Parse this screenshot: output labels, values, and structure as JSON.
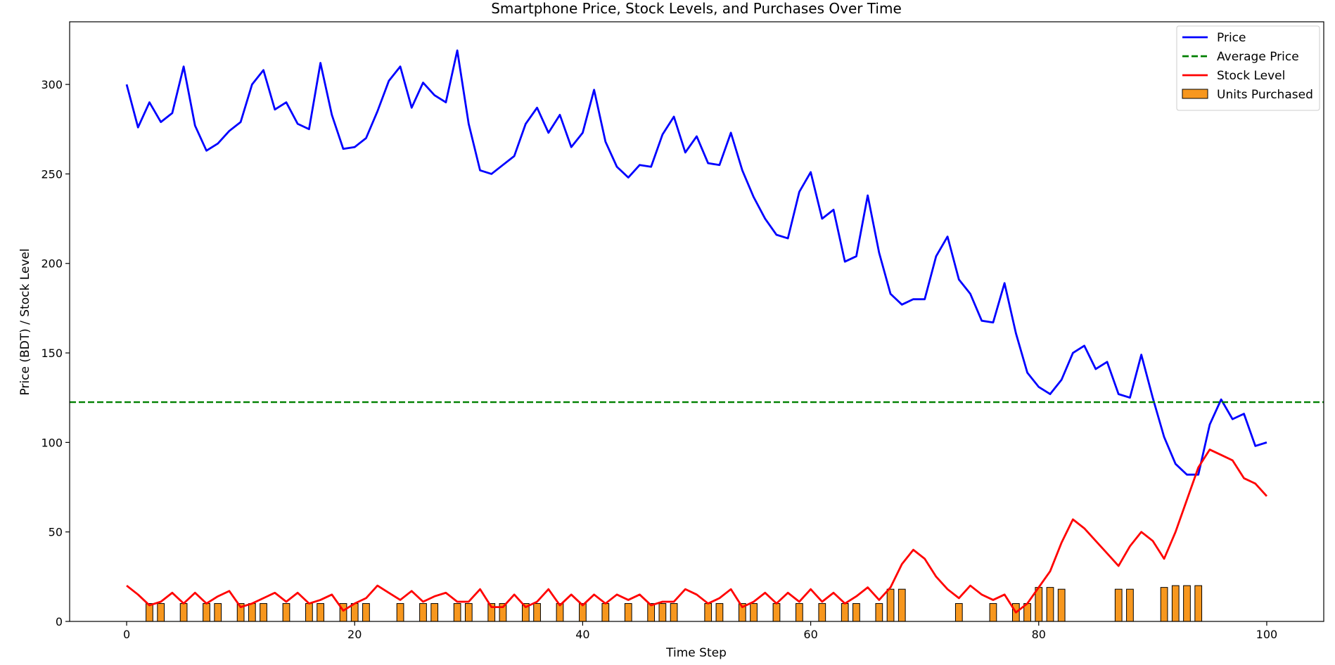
{
  "chart_data": {
    "type": "line",
    "title": "Smartphone Price, Stock Levels, and Purchases Over Time",
    "xlabel": "Time Step",
    "ylabel": "Price (BDT) / Stock Level",
    "xlim": [
      -5,
      105
    ],
    "ylim": [
      0,
      335
    ],
    "xticks": [
      0,
      20,
      40,
      60,
      80,
      100
    ],
    "yticks": [
      0,
      50,
      100,
      150,
      200,
      250,
      300
    ],
    "grid": false,
    "legend_position": "top-right",
    "x": [
      0,
      1,
      2,
      3,
      4,
      5,
      6,
      7,
      8,
      9,
      10,
      11,
      12,
      13,
      14,
      15,
      16,
      17,
      18,
      19,
      20,
      21,
      22,
      23,
      24,
      25,
      26,
      27,
      28,
      29,
      30,
      31,
      32,
      33,
      34,
      35,
      36,
      37,
      38,
      39,
      40,
      41,
      42,
      43,
      44,
      45,
      46,
      47,
      48,
      49,
      50,
      51,
      52,
      53,
      54,
      55,
      56,
      57,
      58,
      59,
      60,
      61,
      62,
      63,
      64,
      65,
      66,
      67,
      68,
      69,
      70,
      71,
      72,
      73,
      74,
      75,
      76,
      77,
      78,
      79,
      80,
      81,
      82,
      83,
      84,
      85,
      86,
      87,
      88,
      89,
      90,
      91,
      92,
      93,
      94,
      95,
      96,
      97,
      98,
      99,
      100
    ],
    "series": [
      {
        "name": "Price",
        "kind": "line",
        "color": "#0000ff",
        "style": "solid",
        "values": [
          300,
          276,
          290,
          279,
          284,
          310,
          277,
          263,
          267,
          274,
          279,
          300,
          308,
          286,
          290,
          278,
          275,
          312,
          283,
          264,
          265,
          270,
          285,
          302,
          310,
          287,
          301,
          294,
          290,
          319,
          278,
          252,
          250,
          255,
          260,
          278,
          287,
          273,
          283,
          265,
          273,
          297,
          268,
          254,
          248,
          255,
          254,
          272,
          282,
          262,
          271,
          256,
          255,
          273,
          252,
          237,
          225,
          216,
          214,
          240,
          251,
          225,
          230,
          201,
          204,
          238,
          206,
          183,
          177,
          180,
          180,
          204,
          215,
          191,
          183,
          168,
          167,
          189,
          161,
          139,
          131,
          127,
          135,
          150,
          154,
          141,
          145,
          127,
          125,
          149,
          125,
          103,
          88,
          82,
          82,
          110,
          124,
          113,
          116,
          98,
          100
        ]
      },
      {
        "name": "Average Price",
        "kind": "hline",
        "color": "#008000",
        "style": "dashed",
        "value": 122.5
      },
      {
        "name": "Stock Level",
        "kind": "line",
        "color": "#ff0000",
        "style": "solid",
        "values": [
          20,
          15,
          9,
          11,
          16,
          10,
          16,
          10,
          14,
          17,
          8,
          10,
          13,
          16,
          11,
          16,
          10,
          12,
          15,
          6,
          10,
          13,
          20,
          16,
          12,
          17,
          11,
          14,
          16,
          11,
          11,
          18,
          8,
          8,
          15,
          8,
          11,
          18,
          9,
          15,
          9,
          15,
          10,
          15,
          12,
          15,
          9,
          11,
          11,
          18,
          15,
          10,
          13,
          18,
          8,
          11,
          16,
          10,
          16,
          11,
          18,
          11,
          16,
          10,
          14,
          19,
          12,
          19,
          32,
          40,
          35,
          25,
          18,
          13,
          20,
          15,
          12,
          15,
          5,
          10,
          19,
          28,
          44,
          57,
          52,
          45,
          38,
          31,
          42,
          50,
          45,
          35,
          50,
          68,
          86,
          96,
          93,
          90,
          80,
          77,
          70
        ]
      },
      {
        "name": "Units Purchased",
        "kind": "bar",
        "color": "#f7971e",
        "edgecolor": "#000000",
        "values": [
          0,
          0,
          10,
          10,
          0,
          10,
          0,
          10,
          10,
          0,
          10,
          10,
          10,
          0,
          10,
          0,
          10,
          10,
          0,
          10,
          10,
          10,
          0,
          0,
          10,
          0,
          10,
          10,
          0,
          10,
          10,
          0,
          10,
          10,
          0,
          10,
          10,
          0,
          10,
          0,
          10,
          0,
          10,
          0,
          10,
          0,
          10,
          10,
          10,
          0,
          0,
          10,
          10,
          0,
          10,
          10,
          0,
          10,
          0,
          10,
          0,
          10,
          0,
          10,
          10,
          0,
          10,
          18,
          18,
          0,
          0,
          0,
          0,
          10,
          0,
          0,
          10,
          0,
          10,
          10,
          19,
          19,
          18,
          0,
          0,
          0,
          0,
          18,
          18,
          0,
          0,
          19,
          20,
          20,
          20,
          0,
          0,
          0,
          0,
          0,
          0
        ]
      }
    ]
  }
}
